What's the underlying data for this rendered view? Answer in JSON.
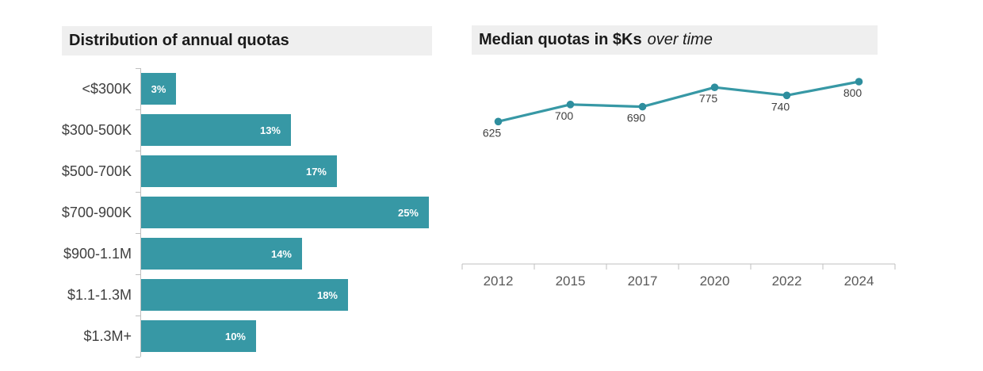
{
  "colors": {
    "accent_teal": "#3798a5",
    "marker_teal": "#2e8e9e",
    "banner_background": "#efefef",
    "axis_gray": "#bfbfbf",
    "title_text": "#1a1a1a",
    "category_text": "#3f3f3f",
    "year_text": "#595959",
    "bar_value_text": "#ffffff"
  },
  "bar_chart": {
    "title": "Distribution of annual quotas"
  },
  "line_chart": {
    "title_bold": "Median quotas in $Ks",
    "title_italic": "over time"
  },
  "chart_data": [
    {
      "type": "bar",
      "orientation": "horizontal",
      "title": "Distribution of annual quotas",
      "categories": [
        "<$300K",
        "$300-500K",
        "$500-700K",
        "$700-900K",
        "$900-1.1M",
        "$1.1-1.3M",
        "$1.3M+"
      ],
      "values": [
        3,
        13,
        17,
        25,
        14,
        18,
        10
      ],
      "value_labels": [
        "3%",
        "13%",
        "17%",
        "25%",
        "14%",
        "18%",
        "10%"
      ],
      "xlim": [
        0,
        25
      ],
      "grid": false,
      "legend": false,
      "bar_color": "#3798a5",
      "value_label_position": "inside-end"
    },
    {
      "type": "line",
      "title": "Median quotas in $Ks over time",
      "categories": [
        "2012",
        "2015",
        "2017",
        "2020",
        "2022",
        "2024"
      ],
      "values": [
        625,
        700,
        690,
        775,
        740,
        800
      ],
      "value_labels": [
        "625",
        "700",
        "690",
        "775",
        "740",
        "800"
      ],
      "ylim": [
        0,
        860
      ],
      "grid": false,
      "legend": false,
      "line_color": "#3798a5",
      "marker": "circle",
      "data_label_position": "below"
    }
  ]
}
